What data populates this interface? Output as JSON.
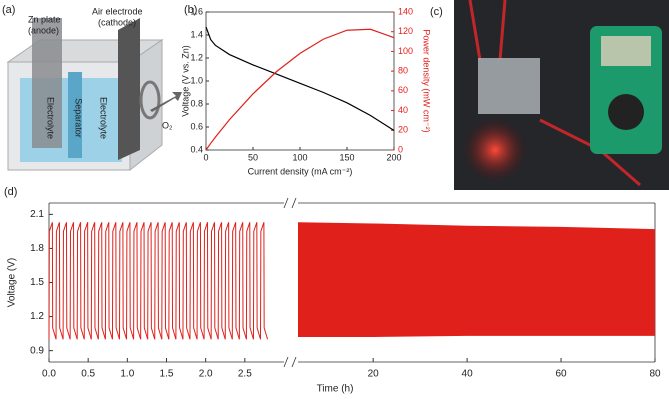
{
  "panel_a": {
    "label": "(a)",
    "anode_label": [
      "Zn plate",
      "(anode)"
    ],
    "cathode_label": [
      "Air electrode",
      "(cathode)"
    ],
    "layers": [
      "Electrolyte",
      "Separator",
      "Electrolyte"
    ],
    "gas": "O₂"
  },
  "panel_c": {
    "label": "(c)"
  },
  "chart_data": [
    {
      "panel_label": "(b)",
      "type": "line",
      "xlabel": "Current density (mA cm⁻²)",
      "ylabel": "Voltage (V vs. Zn)",
      "y2label": "Power density (mW cm⁻²)",
      "x": [
        0,
        5,
        10,
        25,
        50,
        75,
        100,
        125,
        150,
        175,
        200
      ],
      "series": [
        {
          "color": "#000000",
          "values": [
            1.47,
            1.36,
            1.31,
            1.23,
            1.14,
            1.06,
            0.98,
            0.9,
            0.81,
            0.7,
            0.57
          ]
        },
        {
          "color": "#e0201b",
          "axis": "y2",
          "values": [
            0,
            6.8,
            13.1,
            30.8,
            57,
            79.5,
            98,
            112.5,
            121.5,
            122.5,
            114
          ]
        }
      ],
      "xlim": [
        0,
        200
      ],
      "xticks": [
        0,
        50,
        100,
        150,
        200
      ],
      "ylim": [
        0.4,
        1.6
      ],
      "yticks": [
        0.4,
        0.6,
        0.8,
        {
          "value": 1,
          "label": "1.0"
        },
        1.2,
        1.4,
        1.6
      ],
      "y2lim": [
        0,
        140
      ],
      "y2ticks": [
        0,
        20,
        40,
        60,
        80,
        100,
        120,
        140
      ]
    },
    {
      "panel_label": "(d)",
      "type": "cycling",
      "xlabel": "Time (h)",
      "ylabel": "Voltage (V)",
      "color": "#e0201b",
      "ylim": [
        0.8,
        2.2
      ],
      "yticks": [
        0.9,
        1.2,
        1.5,
        1.8,
        2.1
      ],
      "segments": [
        {
          "xlim": [
            0,
            3
          ],
          "xticks": [
            {
              "value": 0,
              "label": "0.0"
            },
            0.5,
            {
              "value": 1,
              "label": "1.0"
            },
            1.5,
            {
              "value": 2,
              "label": "2.0"
            },
            2.5
          ],
          "cycle_period": 0.09,
          "charge_voltage": [
            2.03,
            2.03,
            2.03,
            2.03,
            2.03,
            2.03,
            2.03,
            2.03,
            2.03,
            2.03,
            2.03,
            2.03,
            2.03,
            2.03,
            2.03,
            2.03,
            2.03,
            2.03,
            2.03,
            2.03,
            2.03,
            2.03,
            2.03,
            2.03,
            2.03,
            2.03,
            2.03,
            2.03,
            2.03,
            2.03,
            2.03
          ],
          "discharge_voltage": [
            1.0,
            1.0,
            1.0,
            1.0,
            1.0,
            1.0,
            1.0,
            1.0,
            1.0,
            1.0,
            1.0,
            1.0,
            1.0,
            1.0,
            1.0,
            1.0,
            1.0,
            1.0,
            1.0,
            1.0,
            1.0,
            1.0,
            1.0,
            1.0,
            1.0,
            1.0,
            1.0,
            1.0,
            1.0,
            1.0,
            1.0
          ]
        },
        {
          "xlim": [
            4,
            80
          ],
          "xticks": [
            20,
            40,
            60,
            80
          ],
          "x": [
            4,
            20,
            40,
            60,
            80
          ],
          "upper": [
            2.03,
            2.02,
            2.0,
            1.99,
            1.97
          ],
          "lower": [
            1.02,
            1.02,
            1.03,
            1.03,
            1.03
          ]
        }
      ]
    }
  ]
}
